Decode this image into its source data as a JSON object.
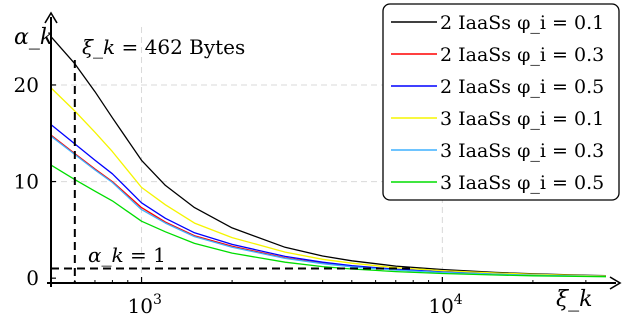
{
  "chart_data": {
    "type": "line",
    "title": "",
    "xlabel": "ξ_k",
    "ylabel": "α_k",
    "x_scale": "log",
    "xlim": [
      500,
      35000
    ],
    "ylim": [
      -0.5,
      26
    ],
    "grid": true,
    "legend_position": "top-right",
    "x_ticks": [
      {
        "value": 1000,
        "base": "10",
        "exp": "3"
      },
      {
        "value": 10000,
        "base": "10",
        "exp": "4"
      }
    ],
    "y_ticks": [
      {
        "value": 0,
        "label": "0"
      },
      {
        "value": 10,
        "label": "10"
      },
      {
        "value": 20,
        "label": "20"
      }
    ],
    "x": [
      500,
      600,
      700,
      800,
      1000,
      1200,
      1500,
      2000,
      3000,
      4000,
      5000,
      7000,
      10000,
      15000,
      20000,
      30000,
      35000
    ],
    "series": [
      {
        "name": "2 IaaSs φ_i = 0.1",
        "color": "#000000",
        "values": [
          25.0,
          22.2,
          19.3,
          16.6,
          12.2,
          9.6,
          7.3,
          5.2,
          3.2,
          2.3,
          1.8,
          1.25,
          0.9,
          0.6,
          0.45,
          0.3,
          0.27
        ]
      },
      {
        "name": "2 IaaSs φ_i = 0.3",
        "color": "#ff0000",
        "values": [
          14.8,
          12.9,
          11.3,
          10.0,
          7.3,
          5.8,
          4.4,
          3.3,
          2.1,
          1.55,
          1.22,
          0.87,
          0.62,
          0.42,
          0.32,
          0.22,
          0.19
        ]
      },
      {
        "name": "2 IaaSs φ_i = 0.5",
        "color": "#0000ff",
        "values": [
          15.9,
          13.9,
          12.2,
          10.8,
          7.8,
          6.2,
          4.7,
          3.5,
          2.25,
          1.65,
          1.3,
          0.92,
          0.66,
          0.45,
          0.34,
          0.23,
          0.2
        ]
      },
      {
        "name": "3 IaaSs φ_i = 0.1",
        "color": "#f5f500",
        "values": [
          19.7,
          17.3,
          15.1,
          13.1,
          9.4,
          7.6,
          5.7,
          4.2,
          2.7,
          1.95,
          1.55,
          1.08,
          0.78,
          0.53,
          0.4,
          0.27,
          0.24
        ]
      },
      {
        "name": "3 IaaSs φ_i = 0.3",
        "color": "#3fb1ff",
        "values": [
          14.7,
          12.8,
          11.2,
          9.9,
          7.1,
          5.7,
          4.3,
          3.2,
          2.05,
          1.5,
          1.18,
          0.84,
          0.6,
          0.41,
          0.31,
          0.21,
          0.18
        ]
      },
      {
        "name": "3 IaaSs φ_i = 0.5",
        "color": "#00dd00",
        "values": [
          11.7,
          10.2,
          9.0,
          8.0,
          5.9,
          4.8,
          3.6,
          2.6,
          1.65,
          1.2,
          0.95,
          0.68,
          0.48,
          0.33,
          0.25,
          0.17,
          0.15
        ]
      }
    ],
    "annotations": [
      {
        "id": "threshold",
        "x": 600,
        "y": 1,
        "label_symbol": "α_k",
        "label_value": "= 1"
      },
      {
        "id": "xi",
        "label_symbol": "ξ_k",
        "label_value": "= 462 Bytes"
      }
    ]
  }
}
